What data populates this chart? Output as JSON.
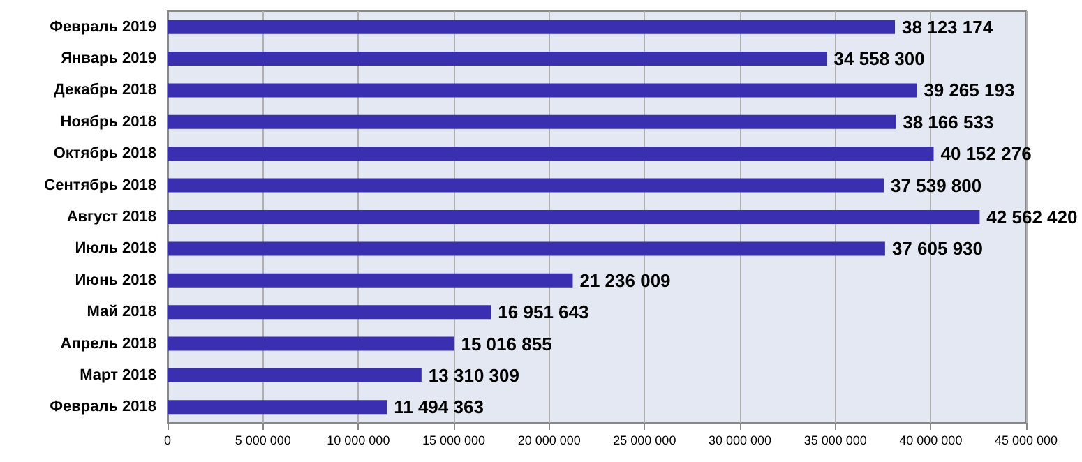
{
  "chart_data": {
    "type": "bar",
    "orientation": "horizontal",
    "categories": [
      "Февраль 2019",
      "Январь 2019",
      "Декабрь 2018",
      "Ноябрь 2018",
      "Октябрь 2018",
      "Сентябрь 2018",
      "Август 2018",
      "Июль 2018",
      "Июнь 2018",
      "Май 2018",
      "Апрель 2018",
      "Март 2018",
      "Февраль 2018"
    ],
    "values": [
      38123174,
      34558300,
      39265193,
      38166533,
      40152276,
      37539800,
      42562420,
      37605930,
      21236009,
      16951643,
      15016855,
      13310309,
      11494363
    ],
    "value_labels": [
      "38 123 174",
      "34 558 300",
      "39 265 193",
      "38 166 533",
      "40 152 276",
      "37 539 800",
      "42 562 420",
      "37 605 930",
      "21 236 009",
      "16 951 643",
      "15 016 855",
      "13 310 309",
      "11 494 363"
    ],
    "color": "#3a2fb0",
    "xlim": [
      0,
      45000000
    ],
    "xticks": [
      {
        "value": 0,
        "label": "0"
      },
      {
        "value": 5000000,
        "label": "5 000 000"
      },
      {
        "value": 10000000,
        "label": "10 000 000"
      },
      {
        "value": 15000000,
        "label": "15 000 000"
      },
      {
        "value": 20000000,
        "label": "20 000 000"
      },
      {
        "value": 25000000,
        "label": "25 000 000"
      },
      {
        "value": 30000000,
        "label": "30 000 000"
      },
      {
        "value": 35000000,
        "label": "35 000 000"
      },
      {
        "value": 40000000,
        "label": "40 000 000"
      },
      {
        "value": 45000000,
        "label": "45 000 000"
      }
    ],
    "grid": "x"
  }
}
